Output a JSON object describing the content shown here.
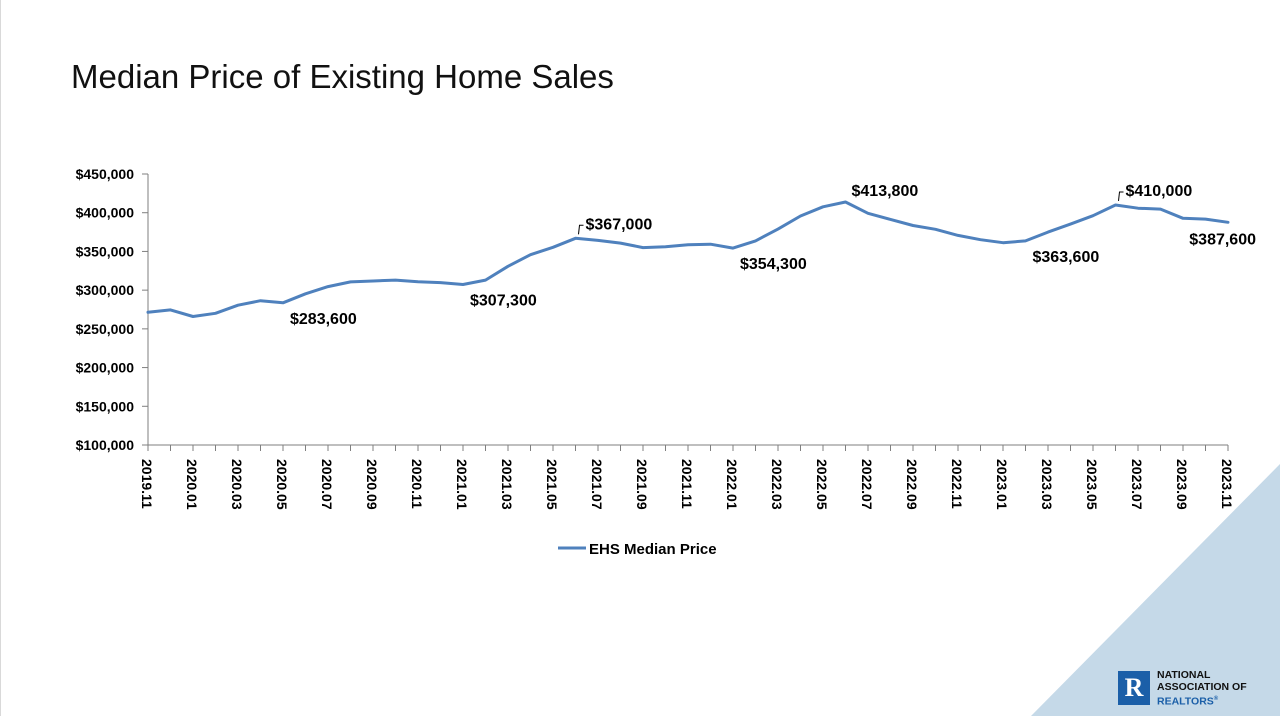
{
  "page": {
    "title": "Median Price of Existing Home Sales"
  },
  "logo": {
    "line1": "NATIONAL",
    "line2": "ASSOCIATION OF",
    "line3": "REALTORS",
    "reg": "®",
    "mark": "R"
  },
  "colors": {
    "line": "#4f81bd",
    "axis": "#7f7f7f",
    "text": "#000000",
    "corner": "#c5d9e8",
    "logo_blue": "#1b5fa8"
  },
  "chart_data": {
    "type": "line",
    "title": "Median Price of Existing Home Sales",
    "xlabel": "",
    "ylabel": "",
    "ylim": [
      100000,
      450000
    ],
    "y_ticks": [
      100000,
      150000,
      200000,
      250000,
      300000,
      350000,
      400000,
      450000
    ],
    "y_tick_labels": [
      "$100,000",
      "$150,000",
      "$200,000",
      "$250,000",
      "$300,000",
      "$350,000",
      "$400,000",
      "$450,000"
    ],
    "x_tick_labels": [
      "2019.11",
      "2020.01",
      "2020.03",
      "2020.05",
      "2020.07",
      "2020.09",
      "2020.11",
      "2021.01",
      "2021.03",
      "2021.05",
      "2021.07",
      "2021.09",
      "2021.11",
      "2022.01",
      "2022.03",
      "2022.05",
      "2022.07",
      "2022.09",
      "2022.11",
      "2023.01",
      "2023.03",
      "2023.05",
      "2023.07",
      "2023.09",
      "2023.11"
    ],
    "x": [
      "2019.11",
      "2019.12",
      "2020.01",
      "2020.02",
      "2020.03",
      "2020.04",
      "2020.05",
      "2020.06",
      "2020.07",
      "2020.08",
      "2020.09",
      "2020.10",
      "2020.11",
      "2020.12",
      "2021.01",
      "2021.02",
      "2021.03",
      "2021.04",
      "2021.05",
      "2021.06",
      "2021.07",
      "2021.08",
      "2021.09",
      "2021.10",
      "2021.11",
      "2021.12",
      "2022.01",
      "2022.02",
      "2022.03",
      "2022.04",
      "2022.05",
      "2022.06",
      "2022.07",
      "2022.08",
      "2022.09",
      "2022.10",
      "2022.11",
      "2022.12",
      "2023.01",
      "2023.02",
      "2023.03",
      "2023.04",
      "2023.05",
      "2023.06",
      "2023.07",
      "2023.08",
      "2023.09",
      "2023.10",
      "2023.11"
    ],
    "series": [
      {
        "name": "EHS Median Price",
        "values": [
          271400,
          274500,
          266000,
          270100,
          280600,
          286400,
          283600,
          295300,
          304600,
          310600,
          311800,
          313000,
          310800,
          309800,
          307300,
          313000,
          330800,
          345800,
          355300,
          367000,
          364200,
          360700,
          355000,
          356100,
          358600,
          359300,
          354300,
          363600,
          378800,
          395700,
          407600,
          413800,
          399300,
          391400,
          383500,
          378600,
          370700,
          365100,
          361300,
          363600,
          375000,
          385300,
          396100,
          410000,
          405800,
          404700,
          392800,
          391700,
          387600
        ]
      }
    ],
    "annotations": [
      {
        "index": 6,
        "label": "$283,600",
        "pos": "below-right"
      },
      {
        "index": 14,
        "label": "$307,300",
        "pos": "below-right"
      },
      {
        "index": 19,
        "label": "$367,000",
        "pos": "above-right-leader"
      },
      {
        "index": 26,
        "label": "$354,300",
        "pos": "below-right"
      },
      {
        "index": 31,
        "label": "$413,800",
        "pos": "above-right"
      },
      {
        "index": 39,
        "label": "$363,600",
        "pos": "below-right"
      },
      {
        "index": 43,
        "label": "$410,000",
        "pos": "above-right-leader"
      },
      {
        "index": 48,
        "label": "$387,600",
        "pos": "below-left"
      }
    ],
    "legend": {
      "label": "EHS Median Price",
      "position": "bottom"
    }
  }
}
